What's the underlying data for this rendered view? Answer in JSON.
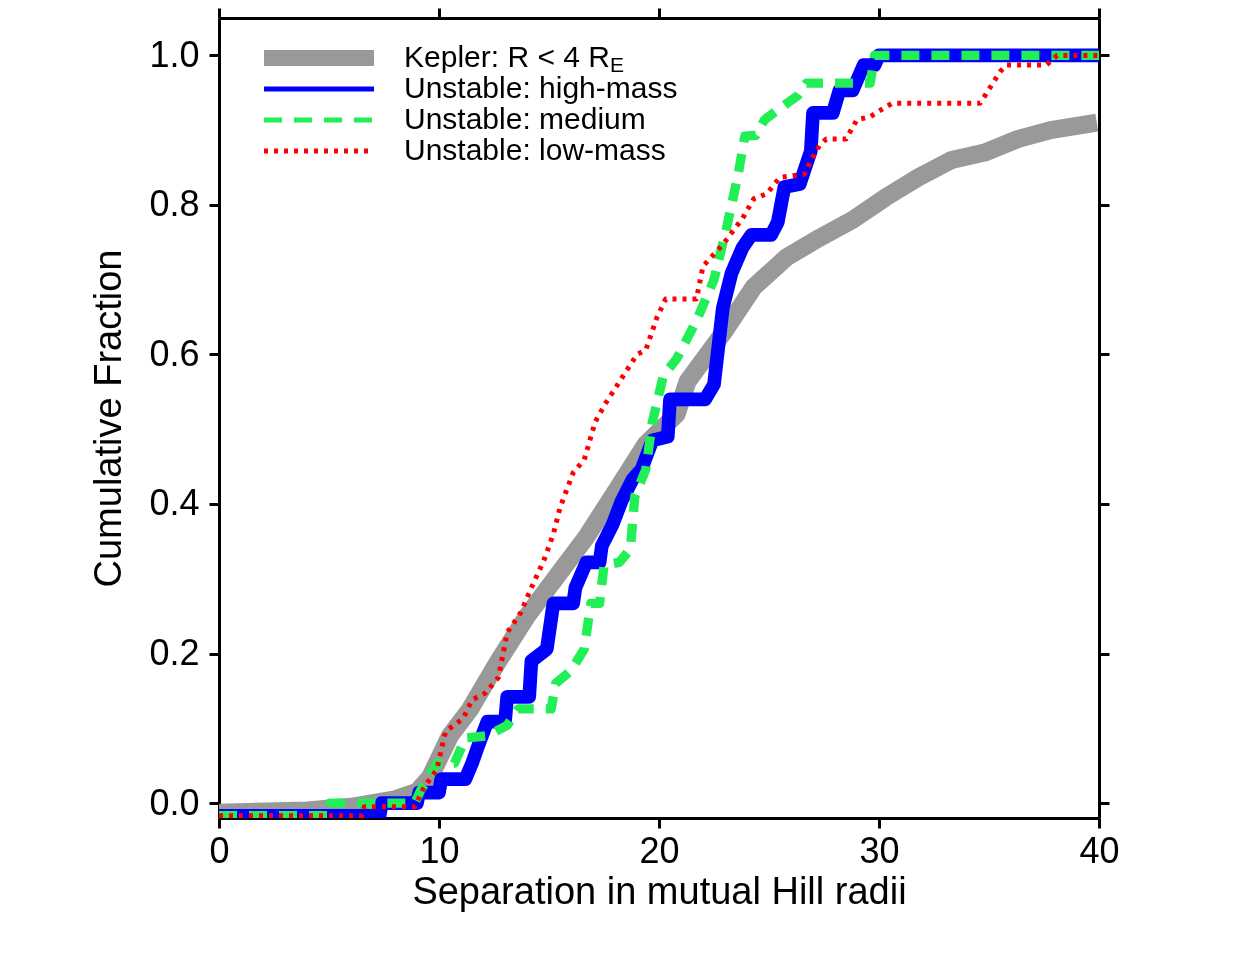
{
  "chart_data": {
    "type": "line",
    "xlabel": "Separation in mutual Hill radii",
    "ylabel": "Cumulative Fraction",
    "xlim": [
      0,
      40
    ],
    "ylim": [
      -0.02,
      1.05
    ],
    "xticks": [
      0,
      10,
      20,
      30,
      40
    ],
    "yticks": [
      {
        "value": 0,
        "label": "0.0"
      },
      0.2,
      0.4,
      0.6,
      0.8,
      {
        "value": 1,
        "label": "1.0"
      }
    ],
    "grid": false,
    "legend": "top left",
    "series": [
      {
        "name": "Kepler: R < 4 R$_{E}$",
        "color": "#999999",
        "line_style": "solid",
        "x": [
          0,
          4,
          6,
          8,
          9,
          9.6,
          10.5,
          11.4,
          12.7,
          14,
          15.4,
          16.7,
          18.1,
          19.4,
          20.8,
          21.3,
          22.9,
          24.3,
          25.8,
          27.3,
          28.8,
          30.3,
          31.8,
          33.3,
          34.8,
          36.3,
          37.8,
          39.9
        ],
        "values": [
          -0.013,
          -0.01,
          -0.005,
          0.005,
          0.015,
          0.035,
          0.09,
          0.125,
          0.19,
          0.25,
          0.305,
          0.356,
          0.42,
          0.48,
          0.52,
          0.564,
          0.628,
          0.69,
          0.73,
          0.756,
          0.78,
          0.81,
          0.837,
          0.86,
          0.87,
          0.888,
          0.9,
          0.91
        ]
      },
      {
        "name": "Unstable: high-mass",
        "color": "#0000ff",
        "line_style": "solid",
        "x": [
          0,
          7.3,
          7.4,
          9.0,
          9.1,
          10.0,
          10.1,
          11.2,
          11.5,
          11.8,
          12.2,
          13.0,
          13.1,
          14.1,
          14.2,
          14.9,
          15.2,
          16.1,
          16.2,
          16.7,
          17.3,
          17.4,
          17.9,
          18.3,
          18.8,
          19.2,
          19.7,
          20.4,
          20.5,
          22.1,
          22.5,
          22.9,
          23.3,
          23.8,
          24.2,
          25.1,
          25.4,
          25.7,
          26.4,
          26.9,
          27.0,
          27.9,
          28.2,
          28.8,
          29.3,
          29.8,
          30.0,
          40
        ],
        "values": [
          -0.017,
          -0.017,
          0,
          0,
          0.014,
          0.014,
          0.032,
          0.032,
          0.053,
          0.078,
          0.109,
          0.109,
          0.142,
          0.142,
          0.19,
          0.206,
          0.267,
          0.267,
          0.288,
          0.322,
          0.322,
          0.344,
          0.373,
          0.404,
          0.433,
          0.446,
          0.485,
          0.49,
          0.54,
          0.54,
          0.56,
          0.662,
          0.709,
          0.743,
          0.76,
          0.76,
          0.777,
          0.824,
          0.828,
          0.872,
          0.923,
          0.923,
          0.953,
          0.953,
          0.987,
          0.987,
          1.0,
          1.0
        ]
      },
      {
        "name": "Unstable: medium",
        "color": "#22ee55",
        "line_style": "dashed",
        "x": [
          0,
          5.0,
          5.05,
          8.9,
          9.2,
          9.5,
          9.9,
          10.7,
          11.2,
          12.2,
          13.1,
          13.6,
          15.1,
          15.3,
          16.0,
          16.6,
          16.9,
          17.3,
          17.5,
          18.2,
          18.7,
          18.9,
          19.4,
          19.7,
          20.2,
          20.8,
          21.7,
          22.5,
          23.1,
          23.6,
          23.9,
          24.4,
          24.8,
          25.4,
          26.3,
          26.7,
          29.6,
          29.8,
          40
        ],
        "values": [
          -0.017,
          -0.017,
          0,
          0,
          0.019,
          0.032,
          0.053,
          0.053,
          0.087,
          0.09,
          0.104,
          0.126,
          0.126,
          0.16,
          0.177,
          0.206,
          0.267,
          0.267,
          0.318,
          0.322,
          0.34,
          0.41,
          0.446,
          0.51,
          0.572,
          0.594,
          0.645,
          0.7,
          0.773,
          0.841,
          0.892,
          0.893,
          0.914,
          0.927,
          0.946,
          0.963,
          0.963,
          1.0,
          1.0
        ]
      },
      {
        "name": "Unstable: low-mass",
        "color": "#ff0000",
        "line_style": "dotted",
        "x": [
          0,
          6.5,
          6.6,
          8.9,
          9.3,
          9.9,
          10.3,
          11.1,
          11.5,
          12.1,
          12.7,
          13.1,
          13.7,
          14.2,
          14.8,
          15.2,
          15.5,
          16.1,
          16.6,
          17.1,
          17.6,
          18.3,
          19.0,
          19.4,
          19.9,
          20.3,
          21.7,
          22.0,
          22.9,
          23.8,
          24.3,
          24.9,
          25.5,
          26.6,
          26.9,
          27.3,
          27.6,
          28.5,
          29.0,
          29.6,
          30.3,
          30.6,
          34.6,
          35.5,
          35.8,
          37.6,
          38.1,
          40
        ],
        "values": [
          -0.017,
          -0.017,
          -0.005,
          -0.005,
          0.02,
          0.045,
          0.096,
          0.113,
          0.138,
          0.147,
          0.168,
          0.228,
          0.254,
          0.288,
          0.327,
          0.36,
          0.395,
          0.442,
          0.459,
          0.51,
          0.536,
          0.568,
          0.6,
          0.606,
          0.649,
          0.674,
          0.674,
          0.718,
          0.747,
          0.782,
          0.808,
          0.815,
          0.837,
          0.841,
          0.859,
          0.88,
          0.888,
          0.888,
          0.914,
          0.918,
          0.931,
          0.936,
          0.936,
          0.978,
          0.987,
          0.987,
          1.0,
          1.0
        ]
      }
    ]
  }
}
